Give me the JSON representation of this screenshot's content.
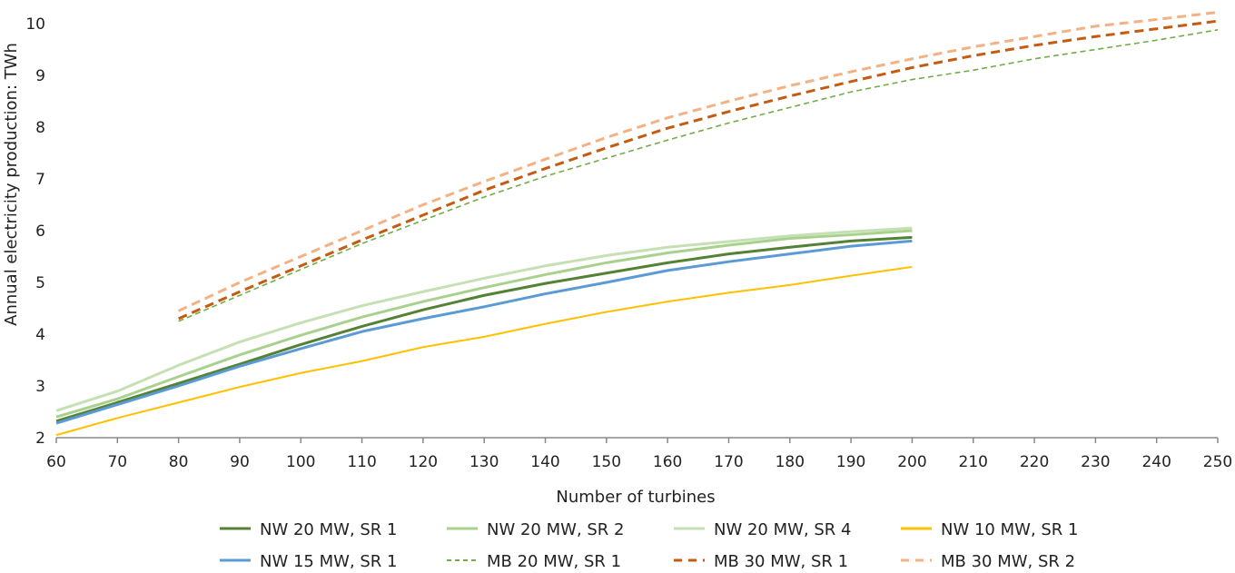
{
  "chart_data": {
    "type": "line",
    "title": "",
    "xlabel": "Number of turbines",
    "ylabel": "Annual electricity production: TWh",
    "xlim": [
      60,
      250
    ],
    "ylim": [
      2,
      10.4
    ],
    "xticks": [
      60,
      70,
      80,
      90,
      100,
      110,
      120,
      130,
      140,
      150,
      160,
      170,
      180,
      190,
      200,
      210,
      220,
      230,
      240,
      250
    ],
    "yticks": [
      2,
      3,
      4,
      5,
      6,
      7,
      8,
      9,
      10
    ],
    "grid": false,
    "legend_position": "bottom",
    "series": [
      {
        "name": "NW 20 MW, SR 1",
        "color": "#548235",
        "dash": false,
        "width": 3,
        "x": [
          60,
          70,
          80,
          90,
          100,
          110,
          120,
          130,
          140,
          150,
          160,
          170,
          180,
          190,
          200
        ],
        "y": [
          2.32,
          2.68,
          3.05,
          3.42,
          3.8,
          4.15,
          4.47,
          4.75,
          4.98,
          5.18,
          5.38,
          5.55,
          5.68,
          5.8,
          5.87
        ]
      },
      {
        "name": "NW 20 MW, SR 2",
        "color": "#a9d18e",
        "dash": false,
        "width": 3,
        "x": [
          60,
          70,
          80,
          90,
          100,
          110,
          120,
          130,
          140,
          150,
          160,
          170,
          180,
          190,
          200
        ],
        "y": [
          2.4,
          2.75,
          3.18,
          3.6,
          3.98,
          4.33,
          4.63,
          4.9,
          5.15,
          5.38,
          5.57,
          5.72,
          5.85,
          5.92,
          6.0
        ]
      },
      {
        "name": "NW 20 MW, SR 4",
        "color": "#c5e0b4",
        "dash": false,
        "width": 3,
        "x": [
          60,
          70,
          80,
          90,
          100,
          110,
          120,
          130,
          140,
          150,
          160,
          170,
          180,
          190,
          200
        ],
        "y": [
          2.52,
          2.9,
          3.4,
          3.85,
          4.22,
          4.55,
          4.82,
          5.08,
          5.32,
          5.52,
          5.68,
          5.79,
          5.9,
          5.98,
          6.05
        ]
      },
      {
        "name": "NW 10 MW, SR 1",
        "color": "#ffc000",
        "dash": false,
        "width": 2,
        "x": [
          60,
          70,
          80,
          90,
          100,
          110,
          120,
          130,
          140,
          150,
          160,
          170,
          180,
          190,
          200
        ],
        "y": [
          2.05,
          2.38,
          2.68,
          2.98,
          3.25,
          3.48,
          3.75,
          3.95,
          4.2,
          4.43,
          4.63,
          4.8,
          4.95,
          5.13,
          5.3
        ]
      },
      {
        "name": "NW 15 MW, SR 1",
        "color": "#5b9bd5",
        "dash": false,
        "width": 3,
        "x": [
          60,
          70,
          80,
          90,
          100,
          110,
          120,
          130,
          140,
          150,
          160,
          170,
          180,
          190,
          200
        ],
        "y": [
          2.28,
          2.64,
          3.0,
          3.38,
          3.72,
          4.05,
          4.3,
          4.53,
          4.78,
          5.0,
          5.23,
          5.4,
          5.55,
          5.7,
          5.8
        ]
      },
      {
        "name": "MB 20 MW, SR 1",
        "color": "#70ad47",
        "dash": true,
        "width": 1.6,
        "x": [
          80,
          90,
          100,
          110,
          120,
          130,
          140,
          150,
          160,
          170,
          180,
          190,
          200,
          210,
          220,
          230,
          240,
          250
        ],
        "y": [
          4.25,
          4.75,
          5.25,
          5.75,
          6.2,
          6.65,
          7.05,
          7.4,
          7.75,
          8.08,
          8.38,
          8.68,
          8.92,
          9.1,
          9.32,
          9.5,
          9.68,
          9.88
        ]
      },
      {
        "name": "MB 30 MW, SR 1",
        "color": "#c55a11",
        "dash": true,
        "width": 3,
        "x": [
          80,
          90,
          100,
          110,
          120,
          130,
          140,
          150,
          160,
          170,
          180,
          190,
          200,
          210,
          220,
          230,
          240,
          250
        ],
        "y": [
          4.3,
          4.82,
          5.32,
          5.82,
          6.3,
          6.78,
          7.2,
          7.6,
          7.98,
          8.3,
          8.6,
          8.88,
          9.15,
          9.38,
          9.58,
          9.75,
          9.9,
          10.05
        ]
      },
      {
        "name": "MB 30 MW, SR 2",
        "color": "#f4b183",
        "dash": true,
        "width": 3,
        "x": [
          80,
          90,
          100,
          110,
          120,
          130,
          140,
          150,
          160,
          170,
          180,
          190,
          200,
          210,
          220,
          230,
          240,
          250
        ],
        "y": [
          4.45,
          5.0,
          5.5,
          6.0,
          6.5,
          6.95,
          7.38,
          7.8,
          8.18,
          8.5,
          8.8,
          9.07,
          9.32,
          9.55,
          9.75,
          9.95,
          10.08,
          10.22
        ]
      }
    ]
  }
}
